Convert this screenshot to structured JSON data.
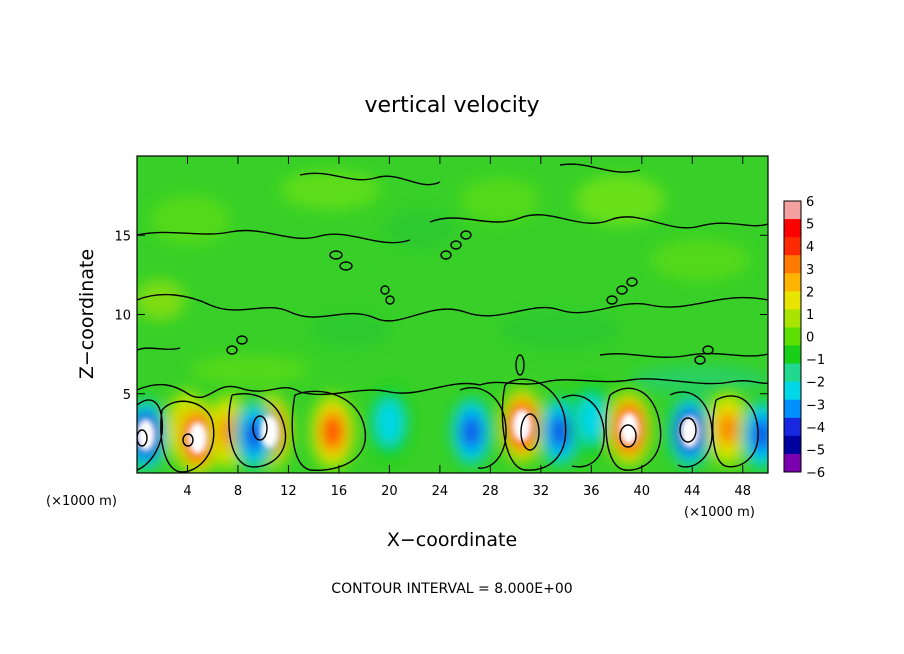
{
  "chart_data": {
    "type": "heatmap",
    "title": "vertical velocity",
    "xlabel": "X−coordinate",
    "ylabel": "Z−coordinate",
    "x_unit_left": "(×1000 m)",
    "x_unit_right": "(×1000 m)",
    "xlim": [
      0,
      50
    ],
    "ylim": [
      0,
      20
    ],
    "x_ticks": [
      4,
      8,
      12,
      16,
      20,
      24,
      28,
      32,
      36,
      40,
      44,
      48
    ],
    "y_ticks": [
      5,
      10,
      15
    ],
    "colorbar": {
      "min": -6,
      "max": 6,
      "ticks": [
        "6",
        "5",
        "4",
        "3",
        "2",
        "1",
        "0",
        "−1",
        "−2",
        "−3",
        "−4",
        "−5",
        "−6"
      ],
      "colors": [
        "#f4a0a0",
        "#ff0000",
        "#ff2a00",
        "#ff7a00",
        "#ffb400",
        "#e8e400",
        "#a8e400",
        "#5ce000",
        "#18d018",
        "#20d890",
        "#00d8e8",
        "#0090ff",
        "#1828e0",
        "#0000a0",
        "#7a00b0"
      ]
    },
    "contour_interval_text": "CONTOUR INTERVAL = 8.000E+00",
    "cells": [
      {
        "x": 0.7,
        "z": 2.4,
        "w": -6
      },
      {
        "x": 4.0,
        "z": 2.8,
        "w": 4
      },
      {
        "x": 4.8,
        "z": 2.2,
        "w": 6
      },
      {
        "x": 7.3,
        "z": 2.6,
        "w": 3
      },
      {
        "x": 10.5,
        "z": 2.6,
        "w": 6
      },
      {
        "x": 9.3,
        "z": 2.4,
        "w": -4
      },
      {
        "x": 15.5,
        "z": 2.6,
        "w": 4
      },
      {
        "x": 20.0,
        "z": 3.2,
        "w": -2
      },
      {
        "x": 26.5,
        "z": 2.6,
        "w": -4
      },
      {
        "x": 30.5,
        "z": 3.0,
        "w": 6
      },
      {
        "x": 33.5,
        "z": 2.6,
        "w": -4
      },
      {
        "x": 36.0,
        "z": 3.4,
        "w": -2
      },
      {
        "x": 39.0,
        "z": 2.8,
        "w": 6
      },
      {
        "x": 43.8,
        "z": 2.6,
        "w": -6
      },
      {
        "x": 46.8,
        "z": 2.8,
        "w": 3
      },
      {
        "x": 49.5,
        "z": 2.4,
        "w": -4
      }
    ]
  }
}
